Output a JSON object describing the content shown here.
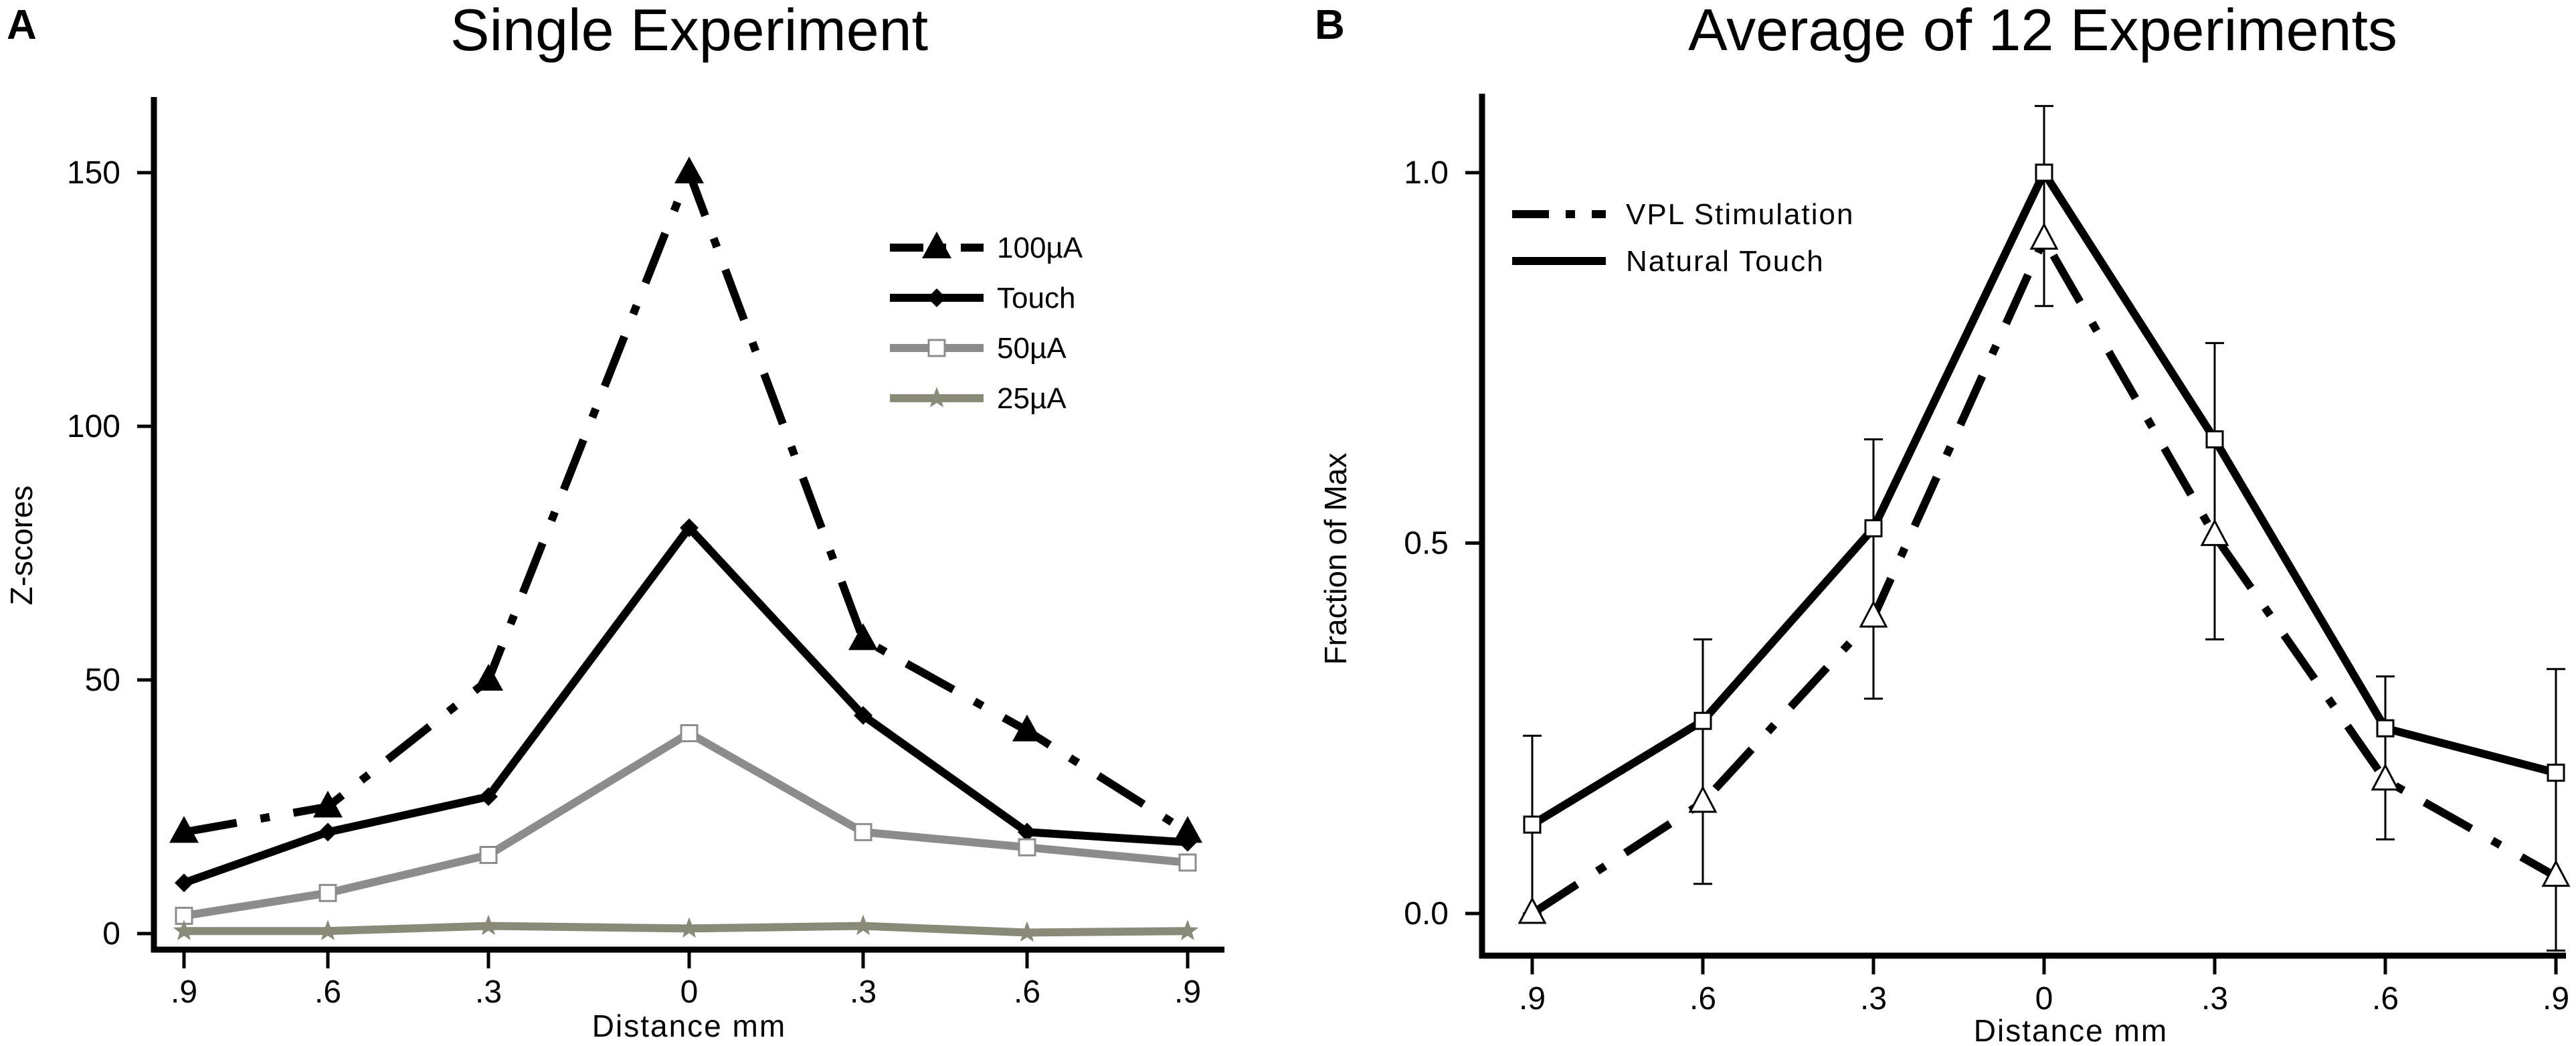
{
  "chart_data": [
    {
      "type": "line",
      "panel_label": "A",
      "title": "Single Experiment",
      "xlabel": "Distance mm",
      "ylabel": "Z-scores",
      "categories": [
        ".9",
        ".6",
        ".3",
        "0",
        ".3",
        ".6",
        ".9"
      ],
      "x": [
        -0.9,
        -0.6,
        -0.3,
        0,
        0.3,
        0.6,
        0.9
      ],
      "ylim": [
        0,
        160
      ],
      "yticks": [
        0,
        50,
        100,
        150
      ],
      "ytick_labels": [
        "0",
        "50",
        "100",
        "150"
      ],
      "grid": false,
      "legend_position": "upper-right",
      "series": [
        {
          "name": "100µA",
          "values": [
            20,
            25,
            50,
            150,
            58,
            40,
            20
          ],
          "color": "#000000",
          "dash": "dash-dot",
          "marker": "filled-triangle"
        },
        {
          "name": "Touch",
          "values": [
            10,
            20,
            27,
            80,
            43,
            20,
            18
          ],
          "color": "#000000",
          "dash": "solid",
          "marker": "filled-diamond"
        },
        {
          "name": "50µA",
          "values": [
            3.5,
            8,
            15.5,
            39.5,
            20,
            17,
            14
          ],
          "color": "#8c8c8c",
          "dash": "solid",
          "marker": "open-square"
        },
        {
          "name": "25µA",
          "values": [
            0.5,
            0.5,
            1.5,
            1,
            1.5,
            0.2,
            0.5
          ],
          "color": "#8a8a78",
          "dash": "solid",
          "marker": "star"
        }
      ]
    },
    {
      "type": "line",
      "panel_label": "B",
      "title": "Average of 12 Experiments",
      "xlabel": "Distance mm",
      "ylabel": "Fraction of Max",
      "categories": [
        ".9",
        ".6",
        ".3",
        "0",
        ".3",
        ".6",
        ".9"
      ],
      "x": [
        -0.9,
        -0.6,
        -0.3,
        0,
        0.3,
        0.6,
        0.9
      ],
      "ylim": [
        -0.05,
        1.1
      ],
      "yticks": [
        0.0,
        0.5,
        1.0
      ],
      "ytick_labels": [
        "0.0",
        "0.5",
        "1.0"
      ],
      "grid": false,
      "legend_position": "upper-left",
      "series": [
        {
          "name": "VPL Stimulation",
          "values": [
            0.0,
            0.15,
            0.4,
            0.91,
            0.51,
            0.18,
            0.05
          ],
          "color": "#000000",
          "dash": "dash-dot",
          "marker": "open-triangle"
        },
        {
          "name": "Natural Touch",
          "values": [
            0.12,
            0.26,
            0.52,
            1.0,
            0.64,
            0.25,
            0.19
          ],
          "color": "#000000",
          "dash": "solid",
          "marker": "open-square"
        }
      ],
      "error_bars": [
        {
          "x": -0.9,
          "low": 0.0,
          "high": 0.24
        },
        {
          "x": -0.6,
          "low": 0.04,
          "high": 0.37
        },
        {
          "x": -0.3,
          "low": 0.29,
          "high": 0.64
        },
        {
          "x": 0,
          "low": 0.82,
          "high": 1.09
        },
        {
          "x": 0.3,
          "low": 0.37,
          "high": 0.77
        },
        {
          "x": 0.6,
          "low": 0.1,
          "high": 0.32
        },
        {
          "x": 0.9,
          "low": -0.05,
          "high": 0.33
        }
      ]
    }
  ]
}
